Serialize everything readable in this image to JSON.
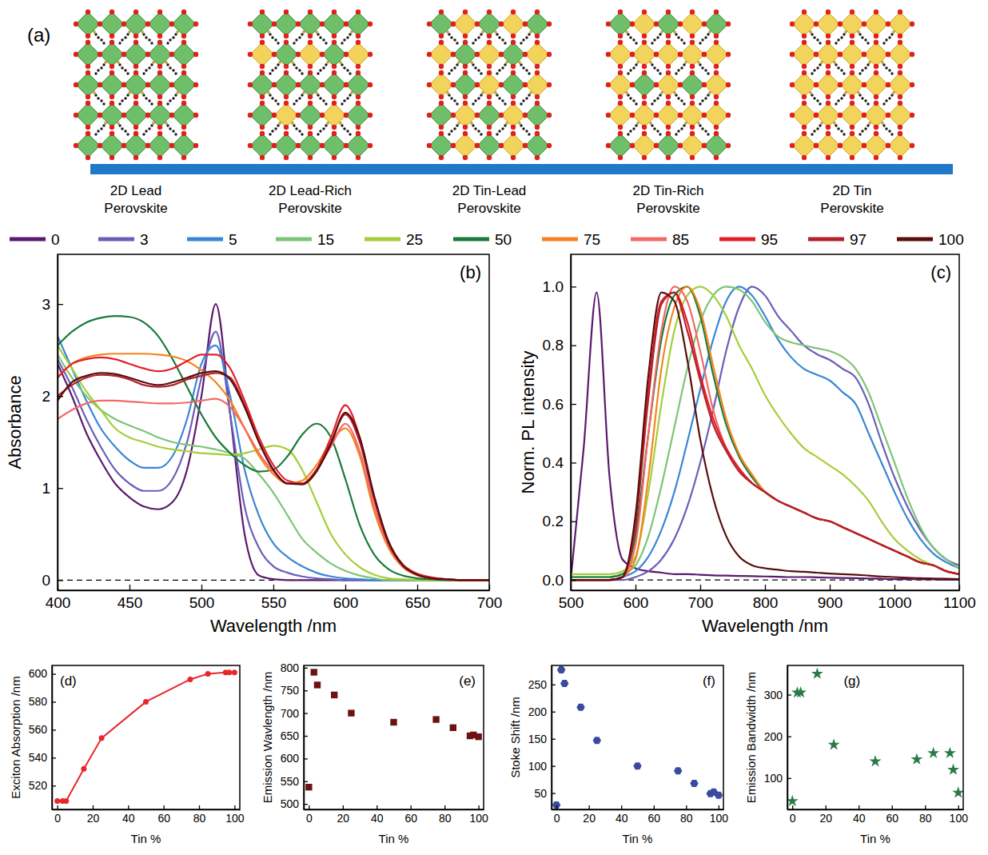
{
  "diagram": {
    "panel_label": "(a)",
    "structures": [
      {
        "label": "2D Lead Perovskite"
      },
      {
        "label": "2D Lead-Rich Perovskite"
      },
      {
        "label": "2D Tin-Lead Perovskite"
      },
      {
        "label": "2D Tin-Rich Perovskite"
      },
      {
        "label": "2D Tin Perovskite"
      }
    ]
  },
  "chart_data": [
    {
      "type": "line",
      "panel_label": "(b)",
      "x_label": "Wavelength /nm",
      "y_label": "Absorbance",
      "legend": "top",
      "xlim": [
        400,
        700
      ],
      "ylim": [
        -0.11,
        3.54
      ],
      "xticks": [
        400,
        450,
        500,
        550,
        600,
        650,
        700
      ],
      "yticks": [
        0,
        1,
        2,
        3
      ],
      "hlines": [
        0
      ],
      "x": [
        400,
        410,
        420,
        430,
        440,
        450,
        460,
        470,
        480,
        490,
        500,
        510,
        520,
        530,
        540,
        550,
        560,
        570,
        580,
        590,
        600,
        610,
        620,
        630,
        640,
        650,
        660,
        670,
        680,
        690,
        700
      ],
      "series": [
        {
          "name": "0",
          "color": "#5b1a6e",
          "values": [
            2.35,
            2.0,
            1.6,
            1.3,
            1.05,
            0.9,
            0.8,
            0.77,
            0.85,
            1.2,
            2.0,
            3.0,
            1.8,
            0.5,
            0.05,
            0.01,
            0,
            0,
            0,
            0,
            0,
            0,
            0,
            0,
            0,
            0,
            0,
            0,
            0,
            0,
            0
          ]
        },
        {
          "name": "3",
          "color": "#6a5fb8",
          "values": [
            2.4,
            2.1,
            1.75,
            1.45,
            1.2,
            1.05,
            0.97,
            0.97,
            1.1,
            1.5,
            2.2,
            2.7,
            1.8,
            0.8,
            0.35,
            0.15,
            0.08,
            0.04,
            0.02,
            0.01,
            0,
            0,
            0,
            0,
            0,
            0,
            0,
            0,
            0,
            0,
            0
          ]
        },
        {
          "name": "5",
          "color": "#3a86d6",
          "values": [
            2.65,
            2.3,
            1.95,
            1.65,
            1.45,
            1.3,
            1.22,
            1.22,
            1.35,
            1.75,
            2.35,
            2.55,
            2.0,
            1.2,
            0.7,
            0.4,
            0.25,
            0.15,
            0.08,
            0.04,
            0.02,
            0.01,
            0,
            0,
            0,
            0,
            0,
            0,
            0,
            0,
            0
          ]
        },
        {
          "name": "15",
          "color": "#7cc576",
          "values": [
            2.45,
            2.2,
            2.0,
            1.85,
            1.75,
            1.68,
            1.62,
            1.55,
            1.5,
            1.47,
            1.45,
            1.42,
            1.38,
            1.32,
            1.15,
            0.95,
            0.7,
            0.45,
            0.3,
            0.18,
            0.1,
            0.05,
            0.02,
            0,
            0,
            0,
            0,
            0,
            0,
            0,
            0
          ]
        },
        {
          "name": "25",
          "color": "#a6ce39",
          "values": [
            2.55,
            2.3,
            2.05,
            1.85,
            1.65,
            1.55,
            1.5,
            1.45,
            1.42,
            1.4,
            1.38,
            1.37,
            1.36,
            1.38,
            1.42,
            1.46,
            1.42,
            1.2,
            0.85,
            0.5,
            0.28,
            0.14,
            0.06,
            0.02,
            0.01,
            0,
            0,
            0,
            0,
            0,
            0
          ]
        },
        {
          "name": "50",
          "color": "#1a7a3a",
          "values": [
            2.55,
            2.7,
            2.8,
            2.85,
            2.87,
            2.86,
            2.8,
            2.65,
            2.4,
            2.1,
            1.8,
            1.55,
            1.38,
            1.25,
            1.18,
            1.2,
            1.35,
            1.58,
            1.7,
            1.55,
            1.1,
            0.6,
            0.28,
            0.12,
            0.05,
            0.02,
            0.01,
            0,
            0,
            0,
            0
          ]
        },
        {
          "name": "75",
          "color": "#f5841f",
          "values": [
            2.2,
            2.35,
            2.42,
            2.45,
            2.46,
            2.46,
            2.46,
            2.45,
            2.43,
            2.38,
            2.28,
            2.15,
            1.95,
            1.65,
            1.35,
            1.15,
            1.05,
            1.08,
            1.25,
            1.5,
            1.65,
            1.35,
            0.75,
            0.35,
            0.14,
            0.05,
            0.02,
            0.01,
            0,
            0,
            0
          ]
        },
        {
          "name": "85",
          "color": "#f26a66",
          "values": [
            1.75,
            1.85,
            1.92,
            1.95,
            1.95,
            1.94,
            1.93,
            1.92,
            1.92,
            1.93,
            1.95,
            1.97,
            1.88,
            1.65,
            1.38,
            1.18,
            1.05,
            1.05,
            1.2,
            1.45,
            1.7,
            1.4,
            0.8,
            0.38,
            0.15,
            0.06,
            0.02,
            0.01,
            0,
            0,
            0
          ]
        },
        {
          "name": "95",
          "color": "#e3202a",
          "values": [
            2.2,
            2.35,
            2.4,
            2.42,
            2.4,
            2.35,
            2.3,
            2.27,
            2.3,
            2.38,
            2.45,
            2.45,
            2.3,
            1.95,
            1.55,
            1.25,
            1.08,
            1.05,
            1.2,
            1.55,
            1.9,
            1.55,
            0.9,
            0.42,
            0.17,
            0.07,
            0.03,
            0.01,
            0,
            0,
            0
          ]
        },
        {
          "name": "97",
          "color": "#b3222a",
          "values": [
            2.0,
            2.12,
            2.2,
            2.23,
            2.22,
            2.18,
            2.12,
            2.1,
            2.12,
            2.18,
            2.22,
            2.25,
            2.2,
            1.9,
            1.5,
            1.2,
            1.05,
            1.05,
            1.2,
            1.5,
            1.8,
            1.5,
            0.88,
            0.4,
            0.16,
            0.06,
            0.02,
            0.01,
            0,
            0,
            0
          ]
        },
        {
          "name": "100",
          "color": "#5a0d0d",
          "values": [
            1.95,
            2.15,
            2.22,
            2.25,
            2.24,
            2.2,
            2.15,
            2.12,
            2.15,
            2.2,
            2.25,
            2.27,
            2.18,
            1.88,
            1.5,
            1.2,
            1.05,
            1.04,
            1.18,
            1.48,
            1.82,
            1.55,
            0.92,
            0.42,
            0.16,
            0.06,
            0.02,
            0.01,
            0,
            0,
            0
          ]
        }
      ]
    },
    {
      "type": "line",
      "panel_label": "(c)",
      "x_label": "Wavelength /nm",
      "y_label": "Norm. PL intensity",
      "xlim": [
        500,
        1100
      ],
      "ylim": [
        -0.035,
        1.11
      ],
      "xticks": [
        500,
        600,
        700,
        800,
        900,
        1000,
        1100
      ],
      "yticks": [
        {
          "value": 0,
          "label": "0.0"
        },
        0.2,
        0.4,
        0.6,
        0.8,
        {
          "value": 1,
          "label": "1.0"
        }
      ],
      "hlines": [
        0
      ],
      "x": [
        500,
        520,
        540,
        560,
        580,
        600,
        620,
        640,
        660,
        680,
        700,
        720,
        740,
        760,
        780,
        800,
        820,
        840,
        860,
        880,
        900,
        920,
        940,
        960,
        980,
        1000,
        1020,
        1040,
        1060,
        1080,
        1100
      ],
      "series": [
        {
          "color": "#5b1a6e",
          "values": [
            0.0,
            0.45,
            0.98,
            0.35,
            0.07,
            0.04,
            0.03,
            0.025,
            0.02,
            0.02,
            0.018,
            0.016,
            0.015,
            0.014,
            0.013,
            0.012,
            0.011,
            0.01,
            0.01,
            0.009,
            0.008,
            0.007,
            0.006,
            0.005,
            0.004,
            0.003,
            0.003,
            0.002,
            0.002,
            0.001,
            0.001
          ]
        },
        {
          "color": "#6a5fb8",
          "values": [
            0,
            0,
            0,
            0,
            0,
            0.01,
            0.03,
            0.07,
            0.14,
            0.25,
            0.4,
            0.58,
            0.78,
            0.93,
            1.0,
            0.97,
            0.9,
            0.85,
            0.8,
            0.77,
            0.75,
            0.72,
            0.69,
            0.6,
            0.47,
            0.35,
            0.25,
            0.17,
            0.11,
            0.07,
            0.05
          ]
        },
        {
          "color": "#3a86d6",
          "values": [
            0,
            0,
            0,
            0,
            0.01,
            0.03,
            0.08,
            0.17,
            0.3,
            0.47,
            0.65,
            0.82,
            0.95,
            1.0,
            0.97,
            0.9,
            0.82,
            0.76,
            0.72,
            0.7,
            0.68,
            0.64,
            0.6,
            0.5,
            0.4,
            0.3,
            0.21,
            0.14,
            0.09,
            0.06,
            0.04
          ]
        },
        {
          "color": "#7cc576",
          "values": [
            0.01,
            0.01,
            0.01,
            0.01,
            0.02,
            0.05,
            0.15,
            0.32,
            0.52,
            0.72,
            0.88,
            0.97,
            1.0,
            0.99,
            0.95,
            0.88,
            0.83,
            0.81,
            0.8,
            0.79,
            0.78,
            0.76,
            0.72,
            0.64,
            0.52,
            0.4,
            0.28,
            0.18,
            0.11,
            0.07,
            0.04
          ]
        },
        {
          "color": "#a6ce39",
          "values": [
            0.02,
            0.02,
            0.02,
            0.02,
            0.03,
            0.08,
            0.3,
            0.6,
            0.85,
            0.97,
            1.0,
            0.97,
            0.9,
            0.8,
            0.72,
            0.63,
            0.56,
            0.5,
            0.45,
            0.42,
            0.39,
            0.36,
            0.32,
            0.27,
            0.2,
            0.14,
            0.1,
            0.07,
            0.05,
            0.03,
            0.02
          ]
        },
        {
          "color": "#1a7a3a",
          "values": [
            0.01,
            0.01,
            0.01,
            0.01,
            0.02,
            0.15,
            0.5,
            0.82,
            0.97,
            1.0,
            0.9,
            0.7,
            0.53,
            0.42,
            0.35,
            0.3,
            0.27,
            0.25,
            0.23,
            0.21,
            0.2,
            0.18,
            0.16,
            0.14,
            0.12,
            0.1,
            0.08,
            0.06,
            0.05,
            0.03,
            0.02
          ]
        },
        {
          "color": "#f5841f",
          "values": [
            0,
            0,
            0,
            0,
            0.01,
            0.07,
            0.35,
            0.72,
            0.93,
            1.0,
            0.92,
            0.73,
            0.55,
            0.43,
            0.36,
            0.3,
            0.27,
            0.25,
            0.23,
            0.21,
            0.2,
            0.18,
            0.16,
            0.14,
            0.12,
            0.1,
            0.08,
            0.06,
            0.05,
            0.03,
            0.02
          ]
        },
        {
          "color": "#f26a66",
          "values": [
            0,
            0,
            0,
            0,
            0.01,
            0.12,
            0.5,
            0.85,
            1.0,
            0.95,
            0.78,
            0.58,
            0.45,
            0.38,
            0.33,
            0.3,
            0.27,
            0.25,
            0.23,
            0.21,
            0.2,
            0.18,
            0.16,
            0.14,
            0.12,
            0.1,
            0.08,
            0.06,
            0.05,
            0.03,
            0.02
          ]
        },
        {
          "color": "#e3202a",
          "values": [
            0,
            0,
            0,
            0,
            0.01,
            0.2,
            0.65,
            0.95,
            0.98,
            0.88,
            0.7,
            0.55,
            0.45,
            0.38,
            0.33,
            0.3,
            0.27,
            0.25,
            0.23,
            0.21,
            0.2,
            0.18,
            0.16,
            0.14,
            0.12,
            0.1,
            0.08,
            0.06,
            0.05,
            0.03,
            0.02
          ]
        },
        {
          "color": "#b3222a",
          "values": [
            0,
            0,
            0,
            0,
            0.01,
            0.18,
            0.62,
            0.94,
            0.98,
            0.85,
            0.68,
            0.53,
            0.44,
            0.37,
            0.33,
            0.3,
            0.27,
            0.25,
            0.23,
            0.21,
            0.2,
            0.18,
            0.16,
            0.14,
            0.12,
            0.1,
            0.08,
            0.06,
            0.05,
            0.03,
            0.02
          ]
        },
        {
          "color": "#5a0d0d",
          "values": [
            0,
            0,
            0,
            0,
            0.01,
            0.22,
            0.7,
            0.98,
            0.95,
            0.75,
            0.48,
            0.28,
            0.15,
            0.08,
            0.05,
            0.04,
            0.035,
            0.03,
            0.028,
            0.025,
            0.022,
            0.02,
            0.018,
            0.015,
            0.012,
            0.01,
            0.008,
            0.006,
            0.005,
            0.004,
            0.003
          ]
        }
      ]
    },
    {
      "type": "line",
      "panel_label": "(d)",
      "x_label": "Tin %",
      "y_label": "Exciton Absorption /nm",
      "color": "#e8262b",
      "marker": "circle",
      "line_style": "solid",
      "xlim": [
        -3,
        103
      ],
      "ylim": [
        503,
        606
      ],
      "xticks": [
        0,
        20,
        40,
        60,
        80,
        100
      ],
      "yticks": [
        520,
        540,
        560,
        580,
        600
      ],
      "x": [
        0,
        3,
        5,
        15,
        25,
        50,
        75,
        85,
        95,
        97,
        100
      ],
      "values": [
        509,
        509,
        509,
        532,
        554,
        580,
        596,
        600,
        601,
        601,
        601
      ]
    },
    {
      "type": "scatter",
      "panel_label": "(e)",
      "x_label": "Tin %",
      "y_label": "Emission Wavlength /nm",
      "color": "#6b1212",
      "marker": "square",
      "xlim": [
        -3,
        103
      ],
      "ylim": [
        488,
        805
      ],
      "xticks": [
        0,
        20,
        40,
        60,
        80,
        100
      ],
      "yticks": [
        500,
        550,
        600,
        650,
        700,
        750,
        800
      ],
      "x": [
        0,
        3,
        5,
        15,
        25,
        50,
        75,
        85,
        95,
        97,
        100
      ],
      "values": [
        537,
        790,
        762,
        740,
        700,
        680,
        686,
        668,
        650,
        652,
        648
      ]
    },
    {
      "type": "scatter",
      "panel_label": "(f)",
      "x_label": "Tin %",
      "y_label": "Stoke Shift /nm",
      "color": "#3a4a9f",
      "marker": "hexagon",
      "xlim": [
        -3,
        103
      ],
      "ylim": [
        20,
        285
      ],
      "xticks": [
        0,
        20,
        40,
        60,
        80,
        100
      ],
      "yticks": [
        50,
        100,
        150,
        200,
        250
      ],
      "x": [
        0,
        3,
        5,
        15,
        25,
        50,
        75,
        85,
        95,
        97,
        100
      ],
      "values": [
        28,
        277,
        252,
        208,
        147,
        100,
        91,
        68,
        49,
        52,
        46
      ]
    },
    {
      "type": "scatter",
      "panel_label": "(g)",
      "x_label": "Tin %",
      "y_label": "Emission Bandwidth /nm",
      "color": "#2a7a46",
      "marker": "star",
      "xlim": [
        -3,
        103
      ],
      "ylim": [
        25,
        370
      ],
      "xticks": [
        0,
        20,
        40,
        60,
        80,
        100
      ],
      "yticks": [
        100,
        200,
        300
      ],
      "x": [
        0,
        3,
        5,
        15,
        25,
        50,
        75,
        85,
        95,
        97,
        100
      ],
      "values": [
        45,
        305,
        305,
        350,
        180,
        140,
        145,
        160,
        160,
        120,
        65
      ]
    }
  ]
}
